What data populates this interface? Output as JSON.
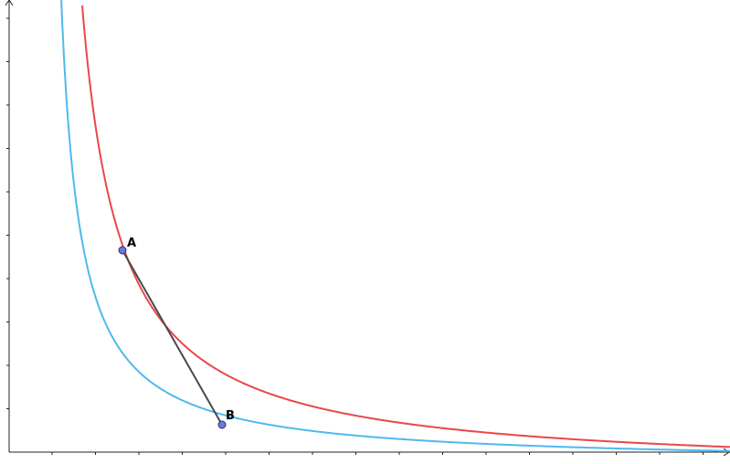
{
  "colors": {
    "curve_red": "#e8474c",
    "curve_blue": "#4fb8ee",
    "segment": "#4a4a4a",
    "point_fill": "#6b78d8",
    "point_stroke": "#2a2f80",
    "axis": "#222222"
  },
  "points": {
    "A": {
      "label": "A"
    },
    "B": {
      "label": "B"
    }
  }
}
